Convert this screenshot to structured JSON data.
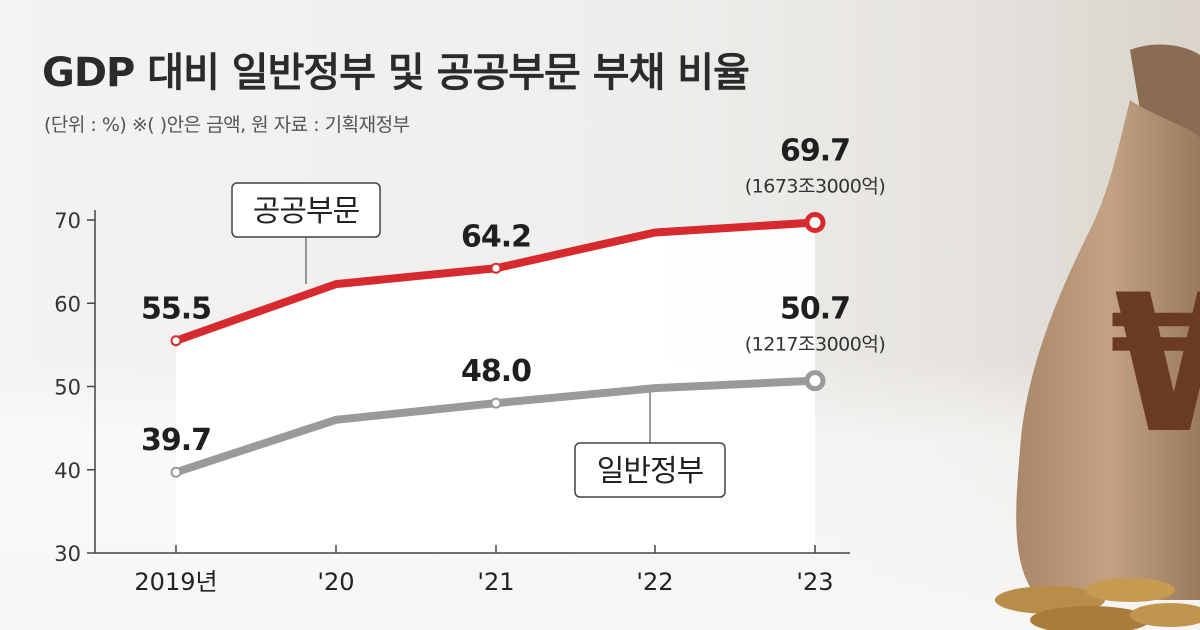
{
  "title": "GDP 대비 일반정부 및 공공부문 부채 비율",
  "subtitle": "(단위 : %)  ※(  )안은 금액, 원  자료 : 기획재정부",
  "colors": {
    "public": "#d62a2f",
    "general": "#9a9a9a",
    "fill": "#ffffff"
  },
  "chart_data": {
    "type": "line",
    "x": [
      "2019년",
      "'20",
      "'21",
      "'22",
      "'23"
    ],
    "ylim": [
      30,
      70
    ],
    "yticks": [
      30,
      40,
      50,
      60,
      70
    ],
    "series": [
      {
        "name": "공공부문",
        "values": [
          55.5,
          62.3,
          64.2,
          68.5,
          69.7
        ]
      },
      {
        "name": "일반정부",
        "values": [
          39.7,
          46.0,
          48.0,
          49.8,
          50.7
        ]
      }
    ],
    "annotations": {
      "public": [
        {
          "index": 0,
          "label": "55.5"
        },
        {
          "index": 2,
          "label": "64.2"
        },
        {
          "index": 4,
          "label": "69.7",
          "note": "(1673조3000억)"
        }
      ],
      "general": [
        {
          "index": 0,
          "label": "39.7"
        },
        {
          "index": 2,
          "label": "48.0"
        },
        {
          "index": 4,
          "label": "50.7",
          "note": "(1217조3000억)"
        }
      ]
    }
  }
}
